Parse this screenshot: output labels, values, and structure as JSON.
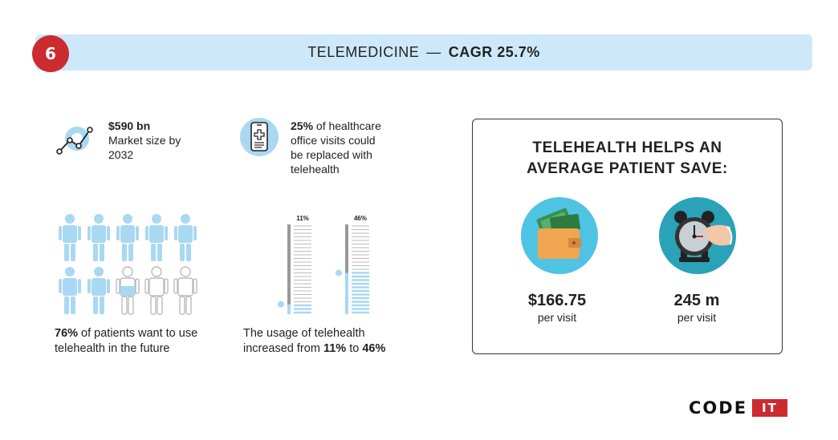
{
  "header": {
    "number": "6",
    "title": "TELEMEDICINE",
    "dash": "—",
    "cagr": "CAGR 25.7%"
  },
  "market": {
    "value": "$590 bn",
    "line1": "Market size by",
    "line2": "2032",
    "icon": "line-chart-icon"
  },
  "visits": {
    "percent": "25%",
    "line1": " of healthcare",
    "line2": "office visits could",
    "line3": "be replaced with",
    "line4": "telehealth",
    "icon": "phone-medical-icon"
  },
  "patients": {
    "total": 10,
    "highlighted": 7.6,
    "percent": "76%",
    "line1": " of patients want to use",
    "line2": "telehealth in the future",
    "colors": {
      "highlight": "#a9d8f2",
      "rest": "#bbbbbb"
    }
  },
  "usage": {
    "bars": [
      {
        "label": "11%",
        "value": 11
      },
      {
        "label": "46%",
        "value": 46
      }
    ],
    "line1": "The usage of telehealth",
    "line2_pre": "increased from ",
    "from": "11%",
    "to_word": " to ",
    "to": "46%"
  },
  "savings": {
    "title_line1": "TELEHEALTH HELPS AN",
    "title_line2": "AVERAGE PATIENT SAVE:",
    "items": [
      {
        "amount": "$166.75",
        "unit": "per visit",
        "icon": "wallet-money-icon"
      },
      {
        "amount": "245 m",
        "unit": "per visit",
        "icon": "alarm-clock-icon"
      }
    ]
  },
  "logo": {
    "code": "CODE",
    "it": "IT"
  },
  "colors": {
    "accent": "#cc2b2f",
    "banner": "#cde9f9",
    "lightblue": "#a9d8f2"
  }
}
